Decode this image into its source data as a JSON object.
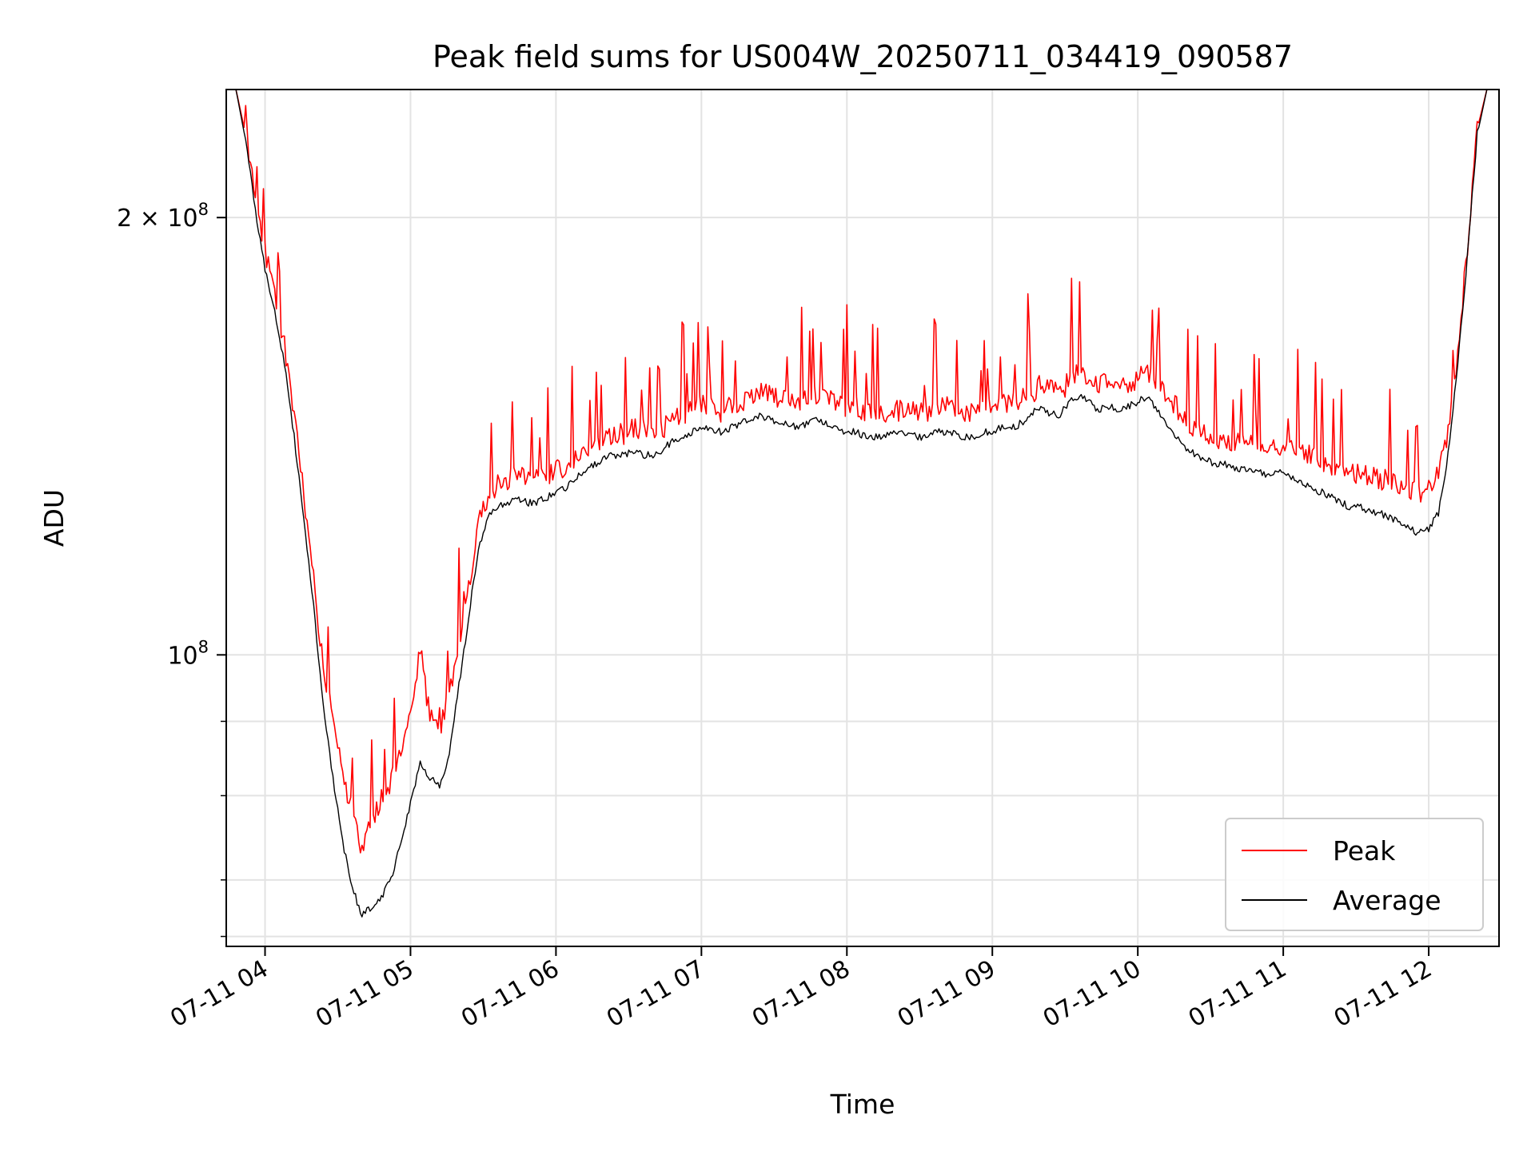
{
  "chart_data": {
    "type": "line",
    "title": "Peak field sums for US004W_20250711_034419_090587",
    "xlabel": "Time",
    "ylabel": "ADU",
    "yscale": "log",
    "ylim": [
      63000000,
      245000000
    ],
    "xlim": [
      "07-11 03:44",
      "07-11 12:29"
    ],
    "grid": true,
    "legend_position": "lower-right",
    "x_ticks": [
      "07-11 04",
      "07-11 05",
      "07-11 06",
      "07-11 07",
      "07-11 08",
      "07-11 09",
      "07-11 10",
      "07-11 11",
      "07-11 12"
    ],
    "y_major_ticks": [
      {
        "value": 100000000,
        "label": "10^8"
      },
      {
        "value": 200000000,
        "label": "2 × 10^8"
      }
    ],
    "y_minor_ticks": [
      64000000,
      70000000,
      80000000,
      90000000
    ],
    "x": [
      "03:44",
      "03:48",
      "03:52",
      "03:56",
      "04:00",
      "04:04",
      "04:08",
      "04:12",
      "04:16",
      "04:20",
      "04:24",
      "04:28",
      "04:32",
      "04:36",
      "04:40",
      "04:44",
      "04:48",
      "04:52",
      "04:56",
      "05:00",
      "05:04",
      "05:08",
      "05:12",
      "05:16",
      "05:20",
      "05:24",
      "05:28",
      "05:32",
      "05:36",
      "05:40",
      "05:44",
      "05:48",
      "05:52",
      "05:56",
      "06:00",
      "06:04",
      "06:08",
      "06:12",
      "06:16",
      "06:20",
      "06:24",
      "06:28",
      "06:32",
      "06:36",
      "06:40",
      "06:44",
      "06:48",
      "06:52",
      "06:56",
      "07:00",
      "07:04",
      "07:08",
      "07:12",
      "07:16",
      "07:20",
      "07:24",
      "07:28",
      "07:32",
      "07:36",
      "07:40",
      "07:44",
      "07:48",
      "07:52",
      "07:56",
      "08:00",
      "08:04",
      "08:08",
      "08:12",
      "08:16",
      "08:20",
      "08:24",
      "08:28",
      "08:32",
      "08:36",
      "08:40",
      "08:44",
      "08:48",
      "08:52",
      "08:56",
      "09:00",
      "09:04",
      "09:08",
      "09:12",
      "09:16",
      "09:20",
      "09:24",
      "09:28",
      "09:32",
      "09:36",
      "09:40",
      "09:44",
      "09:48",
      "09:52",
      "09:56",
      "10:00",
      "10:04",
      "10:08",
      "10:12",
      "10:16",
      "10:20",
      "10:24",
      "10:28",
      "10:32",
      "10:36",
      "10:40",
      "10:44",
      "10:48",
      "10:52",
      "10:56",
      "11:00",
      "11:04",
      "11:08",
      "11:12",
      "11:16",
      "11:20",
      "11:24",
      "11:28",
      "11:32",
      "11:36",
      "11:40",
      "11:44",
      "11:48",
      "11:52",
      "11:56",
      "12:00",
      "12:04",
      "12:08",
      "12:12",
      "12:16",
      "12:20",
      "12:24",
      "12:28"
    ],
    "series": [
      {
        "name": "Peak",
        "color": "#ff0000",
        "values": [
          245000000,
          245000000,
          228000000,
          205000000,
          188000000,
          176000000,
          162000000,
          145000000,
          128000000,
          113000000,
          97000000,
          90000000,
          83000000,
          77000000,
          73000000,
          76000000,
          79000000,
          81000000,
          86000000,
          90000000,
          100000000,
          90000000,
          88000000,
          93000000,
          101000000,
          110000000,
          122000000,
          128000000,
          130000000,
          131000000,
          132000000,
          132000000,
          131000000,
          132000000,
          133000000,
          134000000,
          136000000,
          137000000,
          139000000,
          140000000,
          141000000,
          141000000,
          142000000,
          142000000,
          141000000,
          142000000,
          144000000,
          145000000,
          146000000,
          148000000,
          147000000,
          146000000,
          147000000,
          148000000,
          150000000,
          151000000,
          150000000,
          149000000,
          149000000,
          148000000,
          149000000,
          150000000,
          150000000,
          148000000,
          147000000,
          147000000,
          146000000,
          145000000,
          145000000,
          146000000,
          147000000,
          146000000,
          146000000,
          146000000,
          147000000,
          147000000,
          146000000,
          146000000,
          147000000,
          147000000,
          148000000,
          148000000,
          149000000,
          150000000,
          153000000,
          151000000,
          150000000,
          154000000,
          156000000,
          154000000,
          152000000,
          153000000,
          152000000,
          153000000,
          154000000,
          155000000,
          152000000,
          150000000,
          147000000,
          144000000,
          142000000,
          141000000,
          140000000,
          140000000,
          139000000,
          139000000,
          138000000,
          138000000,
          139000000,
          138000000,
          138000000,
          137000000,
          136000000,
          135000000,
          134000000,
          134000000,
          133000000,
          132000000,
          132000000,
          131000000,
          131000000,
          130000000,
          129000000,
          128000000,
          129000000,
          132000000,
          141000000,
          160000000,
          190000000,
          230000000,
          245000000,
          245000000
        ]
      },
      {
        "name": "Average",
        "color": "#000000",
        "values": [
          245000000,
          245000000,
          226000000,
          202000000,
          184000000,
          172000000,
          158000000,
          141000000,
          124000000,
          108000000,
          92000000,
          82000000,
          74000000,
          69000000,
          66000000,
          67000000,
          68000000,
          70000000,
          74000000,
          79000000,
          84000000,
          82000000,
          81000000,
          85000000,
          95000000,
          106000000,
          118000000,
          124000000,
          126000000,
          127000000,
          128000000,
          127000000,
          127000000,
          128000000,
          129000000,
          130000000,
          132000000,
          133000000,
          135000000,
          136000000,
          137000000,
          137000000,
          138000000,
          137000000,
          137000000,
          138000000,
          140000000,
          141000000,
          142000000,
          143000000,
          143000000,
          142000000,
          143000000,
          144000000,
          145000000,
          146000000,
          145000000,
          144000000,
          144000000,
          143000000,
          144000000,
          145000000,
          144000000,
          143000000,
          142000000,
          142000000,
          141000000,
          141000000,
          141000000,
          142000000,
          142000000,
          141000000,
          141000000,
          142000000,
          142000000,
          142000000,
          141000000,
          141000000,
          142000000,
          142000000,
          143000000,
          143000000,
          144000000,
          146000000,
          148000000,
          146000000,
          146000000,
          149000000,
          150000000,
          149000000,
          147000000,
          148000000,
          147000000,
          148000000,
          149000000,
          150000000,
          147000000,
          144000000,
          141000000,
          138000000,
          137000000,
          136000000,
          135000000,
          135000000,
          134000000,
          134000000,
          133000000,
          133000000,
          133000000,
          133000000,
          132000000,
          131000000,
          130000000,
          129000000,
          128000000,
          127000000,
          126000000,
          126000000,
          125000000,
          125000000,
          124000000,
          123000000,
          122000000,
          121000000,
          122000000,
          125000000,
          137000000,
          158000000,
          188000000,
          228000000,
          245000000,
          245000000
        ]
      }
    ]
  }
}
